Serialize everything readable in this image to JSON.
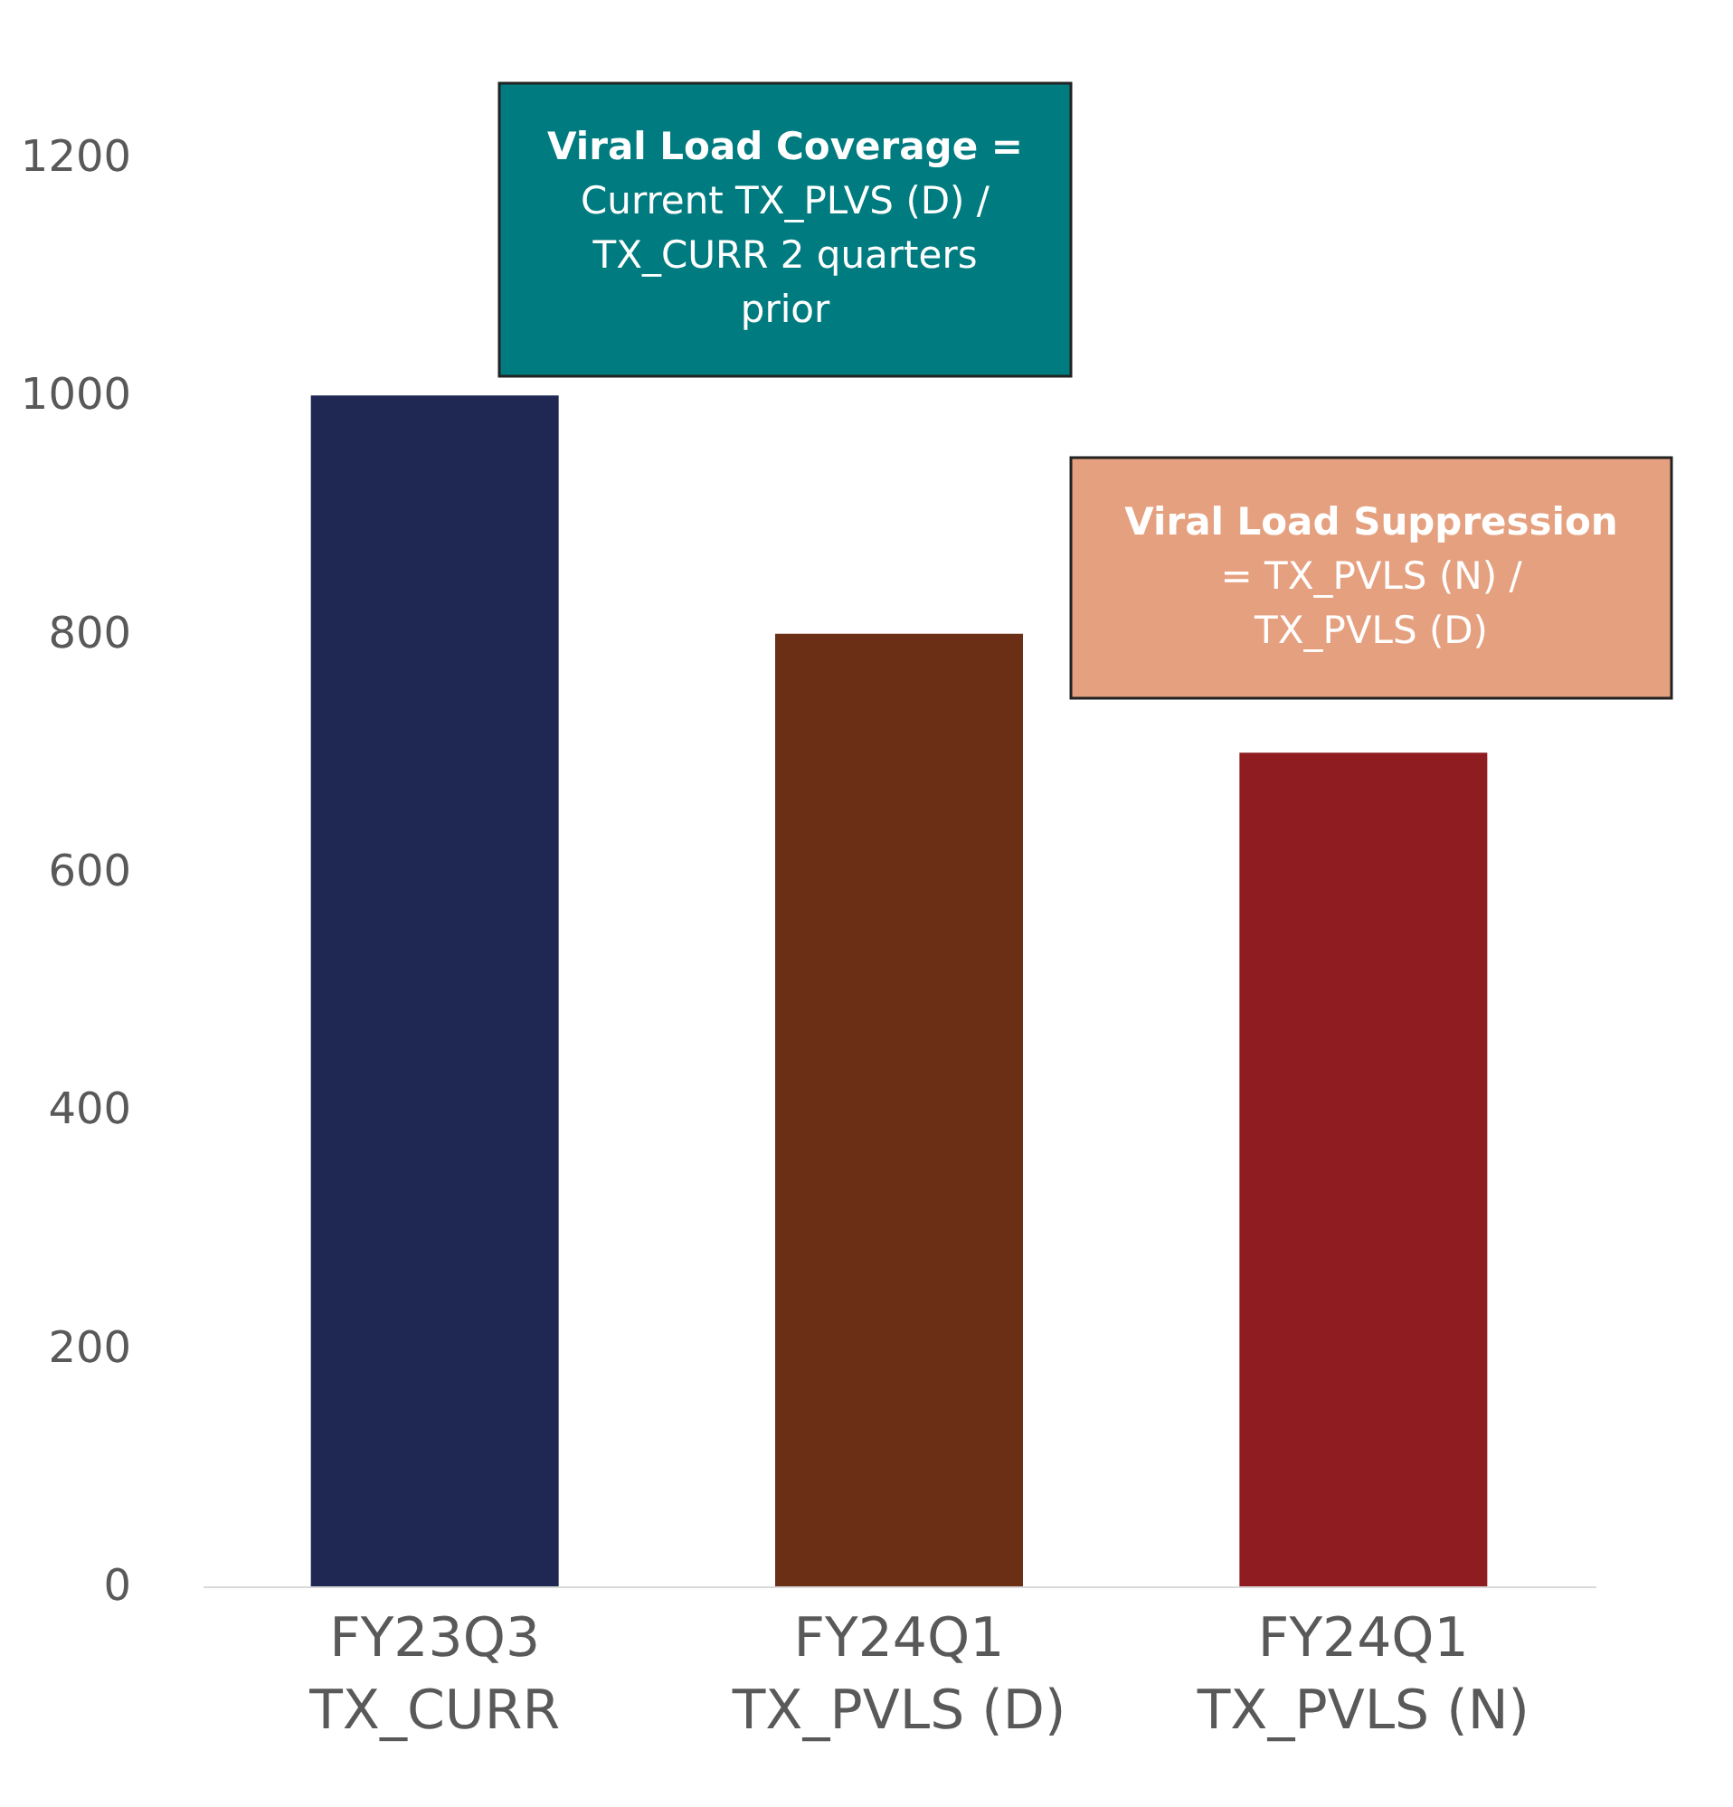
{
  "chart_data": {
    "type": "bar",
    "categories": [
      "FY23Q3\nTX_CURR",
      "FY24Q1\nTX_PVLS (D)",
      "FY24Q1\nTX_PVLS (N)"
    ],
    "values": [
      1000,
      800,
      700
    ],
    "colors": [
      "#1e2853",
      "#6b2f16",
      "#8f1c20"
    ],
    "ylim": [
      0,
      1200
    ],
    "yticks": [
      0,
      200,
      400,
      600,
      800,
      1000,
      1200
    ],
    "grid": false,
    "annotations": [
      "Viral Load Coverage =\nCurrent TX_PLVS (D) /\nTX_CURR 2 quarters\nprior",
      "Viral Load Suppression\n= TX_PVLS (N) /\nTX_PVLS (D)"
    ]
  }
}
